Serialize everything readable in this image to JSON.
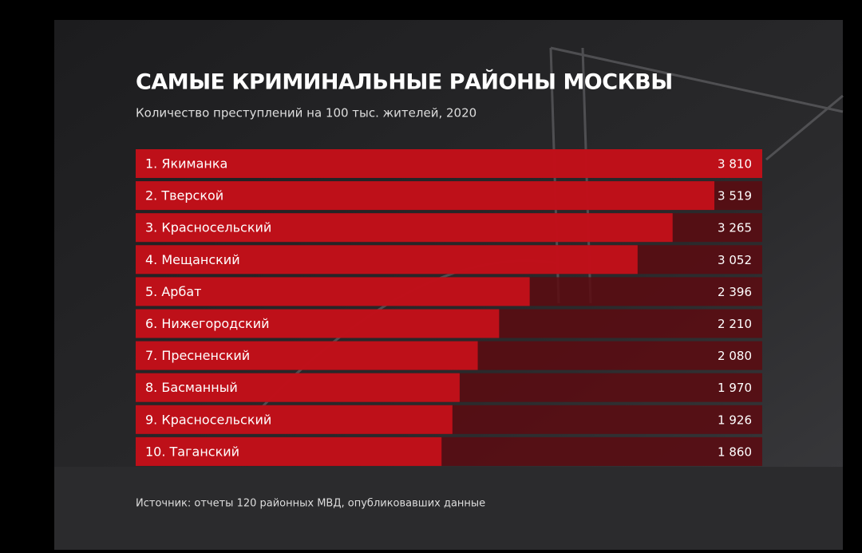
{
  "chart_data": {
    "type": "bar",
    "orientation": "horizontal",
    "title": "САМЫЕ КРИМИНАЛЬНЫЕ РАЙОНЫ МОСКВЫ",
    "subtitle": "Количество преступлений на 100 тыс. жителей, 2020",
    "categories": [
      "1. Якиманка",
      "2. Тверской",
      "3. Красносельский",
      "4. Мещанский",
      "5. Арбат",
      "6. Нижегородский",
      "7. Пресненский",
      "8. Басманный",
      "9. Красносельский",
      "10. Таганский"
    ],
    "values": [
      3810,
      3519,
      3265,
      3052,
      2396,
      2210,
      2080,
      1970,
      1926,
      1860
    ],
    "value_labels": [
      "3 810",
      "3 519",
      "3 265",
      "3 052",
      "2 396",
      "2 210",
      "2 080",
      "1 970",
      "1 926",
      "1 860"
    ],
    "xlim": [
      0,
      3810
    ],
    "color": "#c8101a",
    "track_color": "#5c0a10",
    "source": "Источник: отчеты 120 районных МВД, опубликовавших данные"
  }
}
